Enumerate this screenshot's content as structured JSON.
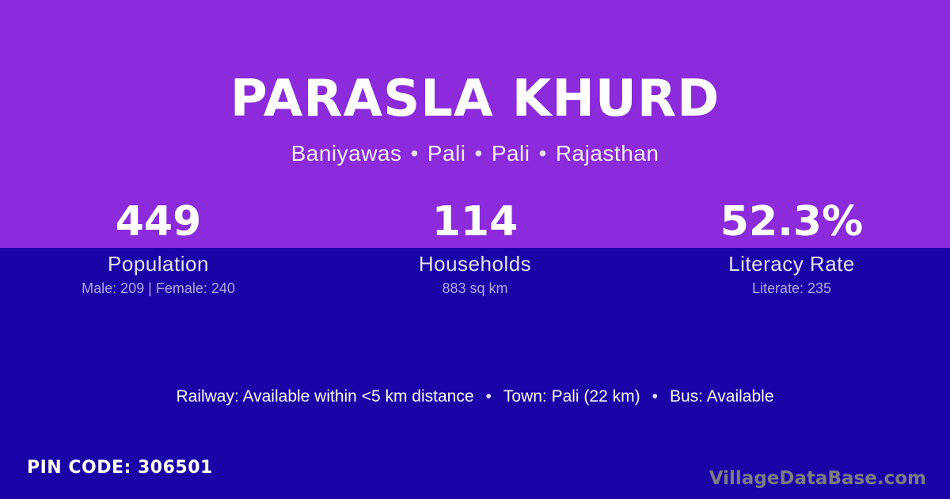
{
  "colors": {
    "top_background": "#8B2BDB",
    "bottom_background": "#1B04A6",
    "title_text": "#FFFFFF",
    "label_text": "#E6E0F6",
    "detail_text": "#B3A6E4",
    "watermark_text": "#7D7C84"
  },
  "header": {
    "title": "PARASLA KHURD",
    "location_parts": [
      "Baniyawas",
      "Pali",
      "Pali",
      "Rajasthan"
    ],
    "separator": "•"
  },
  "stats": [
    {
      "value": "449",
      "label": "Population",
      "detail": "Male: 209 | Female: 240"
    },
    {
      "value": "114",
      "label": "Households",
      "detail": "883 sq km"
    },
    {
      "value": "52.3%",
      "label": "Literacy Rate",
      "detail": "Literate: 235"
    }
  ],
  "amenities": {
    "items": [
      "Railway: Available within <5 km distance",
      "Town: Pali (22 km)",
      "Bus: Available"
    ],
    "separator": "•"
  },
  "footer": {
    "pin_code_text": "PIN CODE: 306501",
    "watermark": "VillageDataBase.com"
  }
}
